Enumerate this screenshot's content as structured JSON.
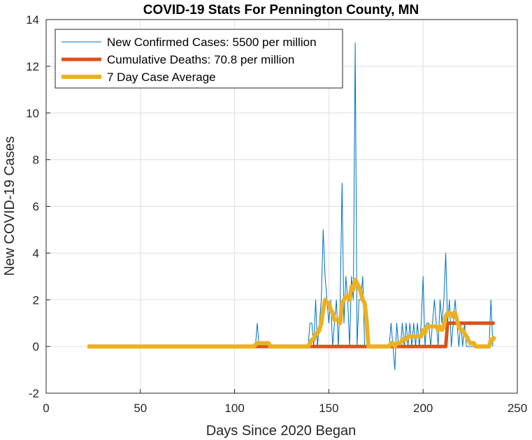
{
  "chart_data": {
    "type": "line",
    "title": "COVID-19 Stats For Pennington County, MN",
    "xlabel": "Days Since 2020 Began",
    "ylabel": "New COVID-19 Cases",
    "xlim": [
      0,
      250
    ],
    "ylim": [
      -2,
      14
    ],
    "xticks": [
      0,
      50,
      100,
      150,
      200,
      250
    ],
    "yticks": [
      -2,
      0,
      2,
      4,
      6,
      8,
      10,
      12,
      14
    ],
    "grid": true,
    "legend_position": "top-left",
    "series": [
      {
        "name": "New Confirmed Cases: 5500 per million",
        "color": "#0072bd",
        "stroke": "thin",
        "points": [
          [
            22,
            0
          ],
          [
            30,
            0
          ],
          [
            40,
            0
          ],
          [
            50,
            0
          ],
          [
            60,
            0
          ],
          [
            70,
            0
          ],
          [
            80,
            0
          ],
          [
            90,
            0
          ],
          [
            100,
            0
          ],
          [
            110,
            0
          ],
          [
            111,
            0
          ],
          [
            112,
            1
          ],
          [
            113,
            0
          ],
          [
            114,
            0
          ],
          [
            115,
            0
          ],
          [
            116,
            0
          ],
          [
            117,
            0
          ],
          [
            118,
            0
          ],
          [
            119,
            0
          ],
          [
            120,
            0
          ],
          [
            125,
            0
          ],
          [
            130,
            0
          ],
          [
            135,
            0
          ],
          [
            138,
            0
          ],
          [
            139,
            0
          ],
          [
            140,
            1
          ],
          [
            141,
            1
          ],
          [
            142,
            0
          ],
          [
            143,
            2
          ],
          [
            144,
            0
          ],
          [
            145,
            1
          ],
          [
            146,
            2
          ],
          [
            147,
            5
          ],
          [
            148,
            3
          ],
          [
            149,
            2
          ],
          [
            150,
            1
          ],
          [
            151,
            2
          ],
          [
            152,
            0
          ],
          [
            153,
            1
          ],
          [
            154,
            2
          ],
          [
            155,
            0
          ],
          [
            156,
            2
          ],
          [
            157,
            7
          ],
          [
            158,
            1
          ],
          [
            159,
            3
          ],
          [
            160,
            2
          ],
          [
            161,
            0
          ],
          [
            162,
            3
          ],
          [
            163,
            2
          ],
          [
            164,
            13
          ],
          [
            165,
            0
          ],
          [
            166,
            2
          ],
          [
            167,
            2
          ],
          [
            168,
            3
          ],
          [
            169,
            0
          ],
          [
            170,
            0
          ],
          [
            171,
            0
          ],
          [
            172,
            0
          ],
          [
            175,
            0
          ],
          [
            180,
            0
          ],
          [
            182,
            0
          ],
          [
            183,
            1
          ],
          [
            184,
            0
          ],
          [
            185,
            -1
          ],
          [
            186,
            1
          ],
          [
            187,
            0
          ],
          [
            188,
            0
          ],
          [
            189,
            1
          ],
          [
            190,
            0
          ],
          [
            191,
            1
          ],
          [
            192,
            0
          ],
          [
            193,
            1
          ],
          [
            194,
            0
          ],
          [
            195,
            1
          ],
          [
            196,
            0
          ],
          [
            197,
            1
          ],
          [
            198,
            0
          ],
          [
            199,
            1
          ],
          [
            200,
            3
          ],
          [
            201,
            0
          ],
          [
            202,
            1
          ],
          [
            203,
            1
          ],
          [
            204,
            0
          ],
          [
            205,
            1
          ],
          [
            206,
            2
          ],
          [
            207,
            1
          ],
          [
            208,
            0
          ],
          [
            209,
            2
          ],
          [
            210,
            1
          ],
          [
            211,
            2
          ],
          [
            212,
            4
          ],
          [
            213,
            1
          ],
          [
            214,
            2
          ],
          [
            215,
            0
          ],
          [
            216,
            1
          ],
          [
            217,
            2
          ],
          [
            218,
            1
          ],
          [
            219,
            0
          ],
          [
            220,
            1
          ],
          [
            221,
            0
          ],
          [
            222,
            1
          ],
          [
            223,
            0
          ],
          [
            224,
            0
          ],
          [
            225,
            0
          ],
          [
            226,
            0
          ],
          [
            227,
            0
          ],
          [
            228,
            0
          ],
          [
            230,
            0
          ],
          [
            232,
            0
          ],
          [
            234,
            0
          ],
          [
            235,
            0
          ],
          [
            236,
            2
          ],
          [
            237,
            0
          ]
        ]
      },
      {
        "name": "Cumulative Deaths: 70.8 per million",
        "color": "#d95319",
        "stroke": "thick",
        "points": [
          [
            22,
            0
          ],
          [
            212,
            0
          ],
          [
            213,
            1
          ],
          [
            238,
            1
          ]
        ]
      },
      {
        "name": "7 Day Case Average",
        "color": "#edb120",
        "stroke": "thicker",
        "points": [
          [
            22,
            0
          ],
          [
            110,
            0
          ],
          [
            112,
            0.14
          ],
          [
            114,
            0.14
          ],
          [
            116,
            0.14
          ],
          [
            118,
            0.14
          ],
          [
            119,
            0
          ],
          [
            120,
            0
          ],
          [
            130,
            0
          ],
          [
            138,
            0
          ],
          [
            139,
            0
          ],
          [
            140,
            0.14
          ],
          [
            141,
            0.29
          ],
          [
            142,
            0.29
          ],
          [
            143,
            0.57
          ],
          [
            144,
            0.57
          ],
          [
            145,
            0.71
          ],
          [
            146,
            1
          ],
          [
            147,
            1.57
          ],
          [
            148,
            2
          ],
          [
            149,
            1.86
          ],
          [
            150,
            1.86
          ],
          [
            151,
            1.6
          ],
          [
            152,
            1.43
          ],
          [
            153,
            1.14
          ],
          [
            154,
            1.14
          ],
          [
            155,
            1.14
          ],
          [
            156,
            1.0
          ],
          [
            157,
            1.86
          ],
          [
            158,
            2.0
          ],
          [
            159,
            2.14
          ],
          [
            160,
            2.14
          ],
          [
            161,
            2.0
          ],
          [
            162,
            2.57
          ],
          [
            163,
            2.43
          ],
          [
            164,
            2.86
          ],
          [
            165,
            2.71
          ],
          [
            166,
            2.57
          ],
          [
            167,
            2.29
          ],
          [
            168,
            2.0
          ],
          [
            169,
            1.86
          ],
          [
            170,
            1.14
          ],
          [
            171,
            0
          ],
          [
            172,
            0
          ],
          [
            175,
            0
          ],
          [
            180,
            0
          ],
          [
            182,
            0
          ],
          [
            183,
            0.14
          ],
          [
            184,
            0.14
          ],
          [
            185,
            0
          ],
          [
            186,
            0.14
          ],
          [
            187,
            0.14
          ],
          [
            188,
            0.14
          ],
          [
            189,
            0.29
          ],
          [
            190,
            0.29
          ],
          [
            191,
            0.29
          ],
          [
            192,
            0.43
          ],
          [
            193,
            0.43
          ],
          [
            194,
            0.43
          ],
          [
            195,
            0.43
          ],
          [
            196,
            0.43
          ],
          [
            197,
            0.43
          ],
          [
            198,
            0.43
          ],
          [
            199,
            0.43
          ],
          [
            200,
            0.71
          ],
          [
            201,
            0.57
          ],
          [
            202,
            0.86
          ],
          [
            203,
            0.86
          ],
          [
            204,
            0.86
          ],
          [
            205,
            0.86
          ],
          [
            206,
            0.86
          ],
          [
            207,
            0.86
          ],
          [
            208,
            0.71
          ],
          [
            209,
            0.86
          ],
          [
            210,
            0.71
          ],
          [
            211,
            0.86
          ],
          [
            212,
            1.29
          ],
          [
            213,
            1.43
          ],
          [
            214,
            1.43
          ],
          [
            215,
            1.29
          ],
          [
            216,
            1.43
          ],
          [
            217,
            1.43
          ],
          [
            218,
            1.14
          ],
          [
            219,
            0.86
          ],
          [
            220,
            0.71
          ],
          [
            221,
            0.71
          ],
          [
            222,
            0.57
          ],
          [
            223,
            0.43
          ],
          [
            224,
            0.29
          ],
          [
            225,
            0.14
          ],
          [
            226,
            0.14
          ],
          [
            227,
            0.14
          ],
          [
            228,
            0
          ],
          [
            230,
            0
          ],
          [
            232,
            0
          ],
          [
            234,
            0
          ],
          [
            235,
            0
          ],
          [
            236,
            0.29
          ],
          [
            237,
            0.29
          ],
          [
            238,
            0.43
          ]
        ]
      }
    ]
  }
}
